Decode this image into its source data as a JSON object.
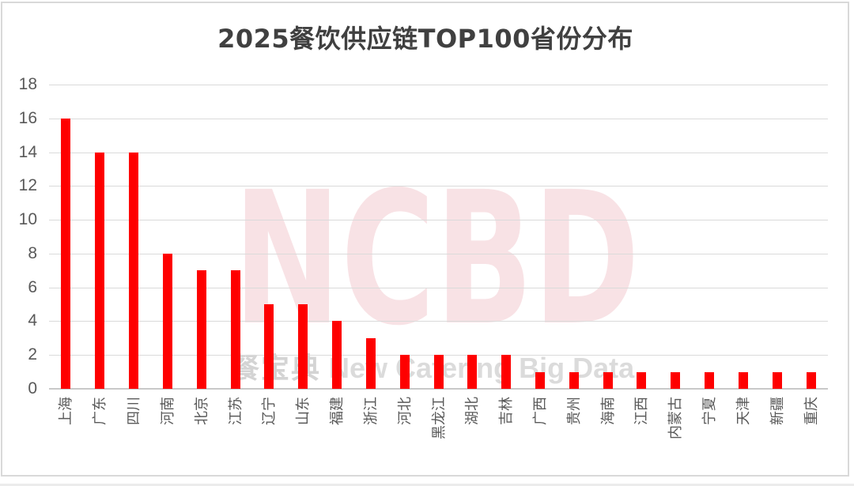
{
  "title": "2025餐饮供应链TOP100省份分布",
  "watermark": {
    "main": "NCBD",
    "sub_cjk": "餐宝典",
    "sub_latin": "New Catering Big Data"
  },
  "colors": {
    "bar": "#fe0000",
    "title_text": "#404040",
    "axis_text": "#595959",
    "gridline": "#dadada",
    "axis_line": "#c9c9c9",
    "frame_border": "#d9d9d9",
    "watermark_pink": "#f8e2e5",
    "watermark_gray_latin": "#dbdbdb",
    "watermark_gray_cjk": "#d4d4d4"
  },
  "chart_data": {
    "type": "bar",
    "title": "2025餐饮供应链TOP100省份分布",
    "categories": [
      "上海",
      "广东",
      "四川",
      "河南",
      "北京",
      "江苏",
      "辽宁",
      "山东",
      "福建",
      "浙江",
      "河北",
      "黑龙江",
      "湖北",
      "吉林",
      "广西",
      "贵州",
      "海南",
      "江西",
      "内蒙古",
      "宁夏",
      "天津",
      "新疆",
      "重庆"
    ],
    "values": [
      16,
      14,
      14,
      8,
      7,
      7,
      5,
      5,
      4,
      3,
      2,
      2,
      2,
      2,
      1,
      1,
      1,
      1,
      1,
      1,
      1,
      1,
      1
    ],
    "xlabel": "",
    "ylabel": "",
    "ylim": [
      0,
      18
    ],
    "yticks": [
      0,
      2,
      4,
      6,
      8,
      10,
      12,
      14,
      16,
      18
    ],
    "grid": true,
    "legend": false,
    "bar_color": "#fe0000",
    "x_tick_rotation_deg": -90
  }
}
